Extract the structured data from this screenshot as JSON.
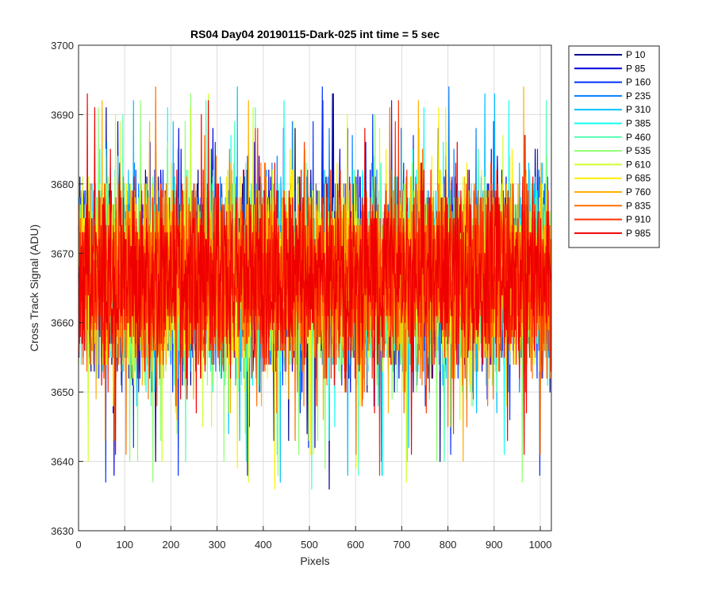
{
  "chart_data": {
    "type": "line",
    "title": "RS04 Day04 20190115-Dark-025 int time = 5 sec",
    "xlabel": "Pixels",
    "ylabel": "Cross Track Signal (ADU)",
    "xlim": [
      0,
      1024
    ],
    "ylim": [
      3630,
      3700
    ],
    "xticks": [
      0,
      100,
      200,
      300,
      400,
      500,
      600,
      700,
      800,
      900,
      1000
    ],
    "yticks": [
      3630,
      3640,
      3650,
      3660,
      3670,
      3680,
      3690,
      3700
    ],
    "grid": true,
    "legend_position": "outside-right",
    "noise_profile": {
      "mean": 3666.5,
      "typical_min": 3650,
      "typical_max": 3684,
      "extreme_low": 3636,
      "extreme_high": 3694,
      "points_per_series": 1024
    },
    "series": [
      {
        "name": "P 10",
        "color": "#00008f"
      },
      {
        "name": "P 85",
        "color": "#0000df"
      },
      {
        "name": "P 160",
        "color": "#0030ff"
      },
      {
        "name": "P 235",
        "color": "#0080ff"
      },
      {
        "name": "P 310",
        "color": "#00c0ff"
      },
      {
        "name": "P 385",
        "color": "#10ffef"
      },
      {
        "name": "P 460",
        "color": "#50ffaf"
      },
      {
        "name": "P 535",
        "color": "#90ff70"
      },
      {
        "name": "P 610",
        "color": "#d0ff30"
      },
      {
        "name": "P 685",
        "color": "#ffef00"
      },
      {
        "name": "P 760",
        "color": "#ffb000"
      },
      {
        "name": "P 835",
        "color": "#ff7000"
      },
      {
        "name": "P 910",
        "color": "#ff3000"
      },
      {
        "name": "P 985",
        "color": "#ef0000"
      }
    ]
  }
}
